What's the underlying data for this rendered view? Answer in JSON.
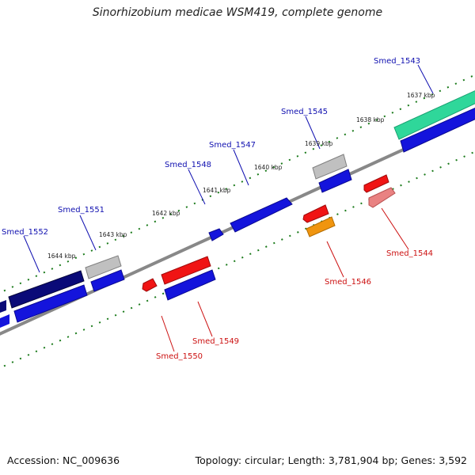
{
  "title": "Sinorhizobium medicae WSM419, complete genome",
  "footer": {
    "accession": "Accession: NC_009636",
    "summary": "Topology: circular; Length: 3,781,904 bp; Genes: 3,592"
  },
  "colors": {
    "backbone": "#888888",
    "tick": "#1a7a1a",
    "forward_label": "#1010b0",
    "reverse_label": "#cc1111"
  },
  "ticks": [
    "1637 kbp",
    "1638 kbp",
    "1639 kbp",
    "1640 kbp",
    "1641 kbp",
    "1642 kbp",
    "1643 kbp",
    "1644 kbp"
  ],
  "genes": [
    {
      "name": "Smed_1543",
      "strand": "forward",
      "color": "#2fd79a"
    },
    {
      "name": "Smed_1544",
      "strand": "reverse",
      "color": "#e98282"
    },
    {
      "name": "Smed_1545",
      "strand": "forward",
      "color": "#c0c0c0"
    },
    {
      "name": "Smed_1546",
      "strand": "reverse",
      "color": "#f0950f"
    },
    {
      "name": "Smed_1547",
      "strand": "forward",
      "color": "#1414dc"
    },
    {
      "name": "Smed_1548",
      "strand": "forward",
      "color": "#1414dc"
    },
    {
      "name": "Smed_1549",
      "strand": "reverse",
      "color": "#f01414"
    },
    {
      "name": "Smed_1550",
      "strand": "reverse",
      "color": "#f01414"
    },
    {
      "name": "Smed_1551",
      "strand": "forward",
      "color": "#c0c0c0"
    },
    {
      "name": "Smed_1552",
      "strand": "forward",
      "color": "#0a0a78"
    }
  ]
}
